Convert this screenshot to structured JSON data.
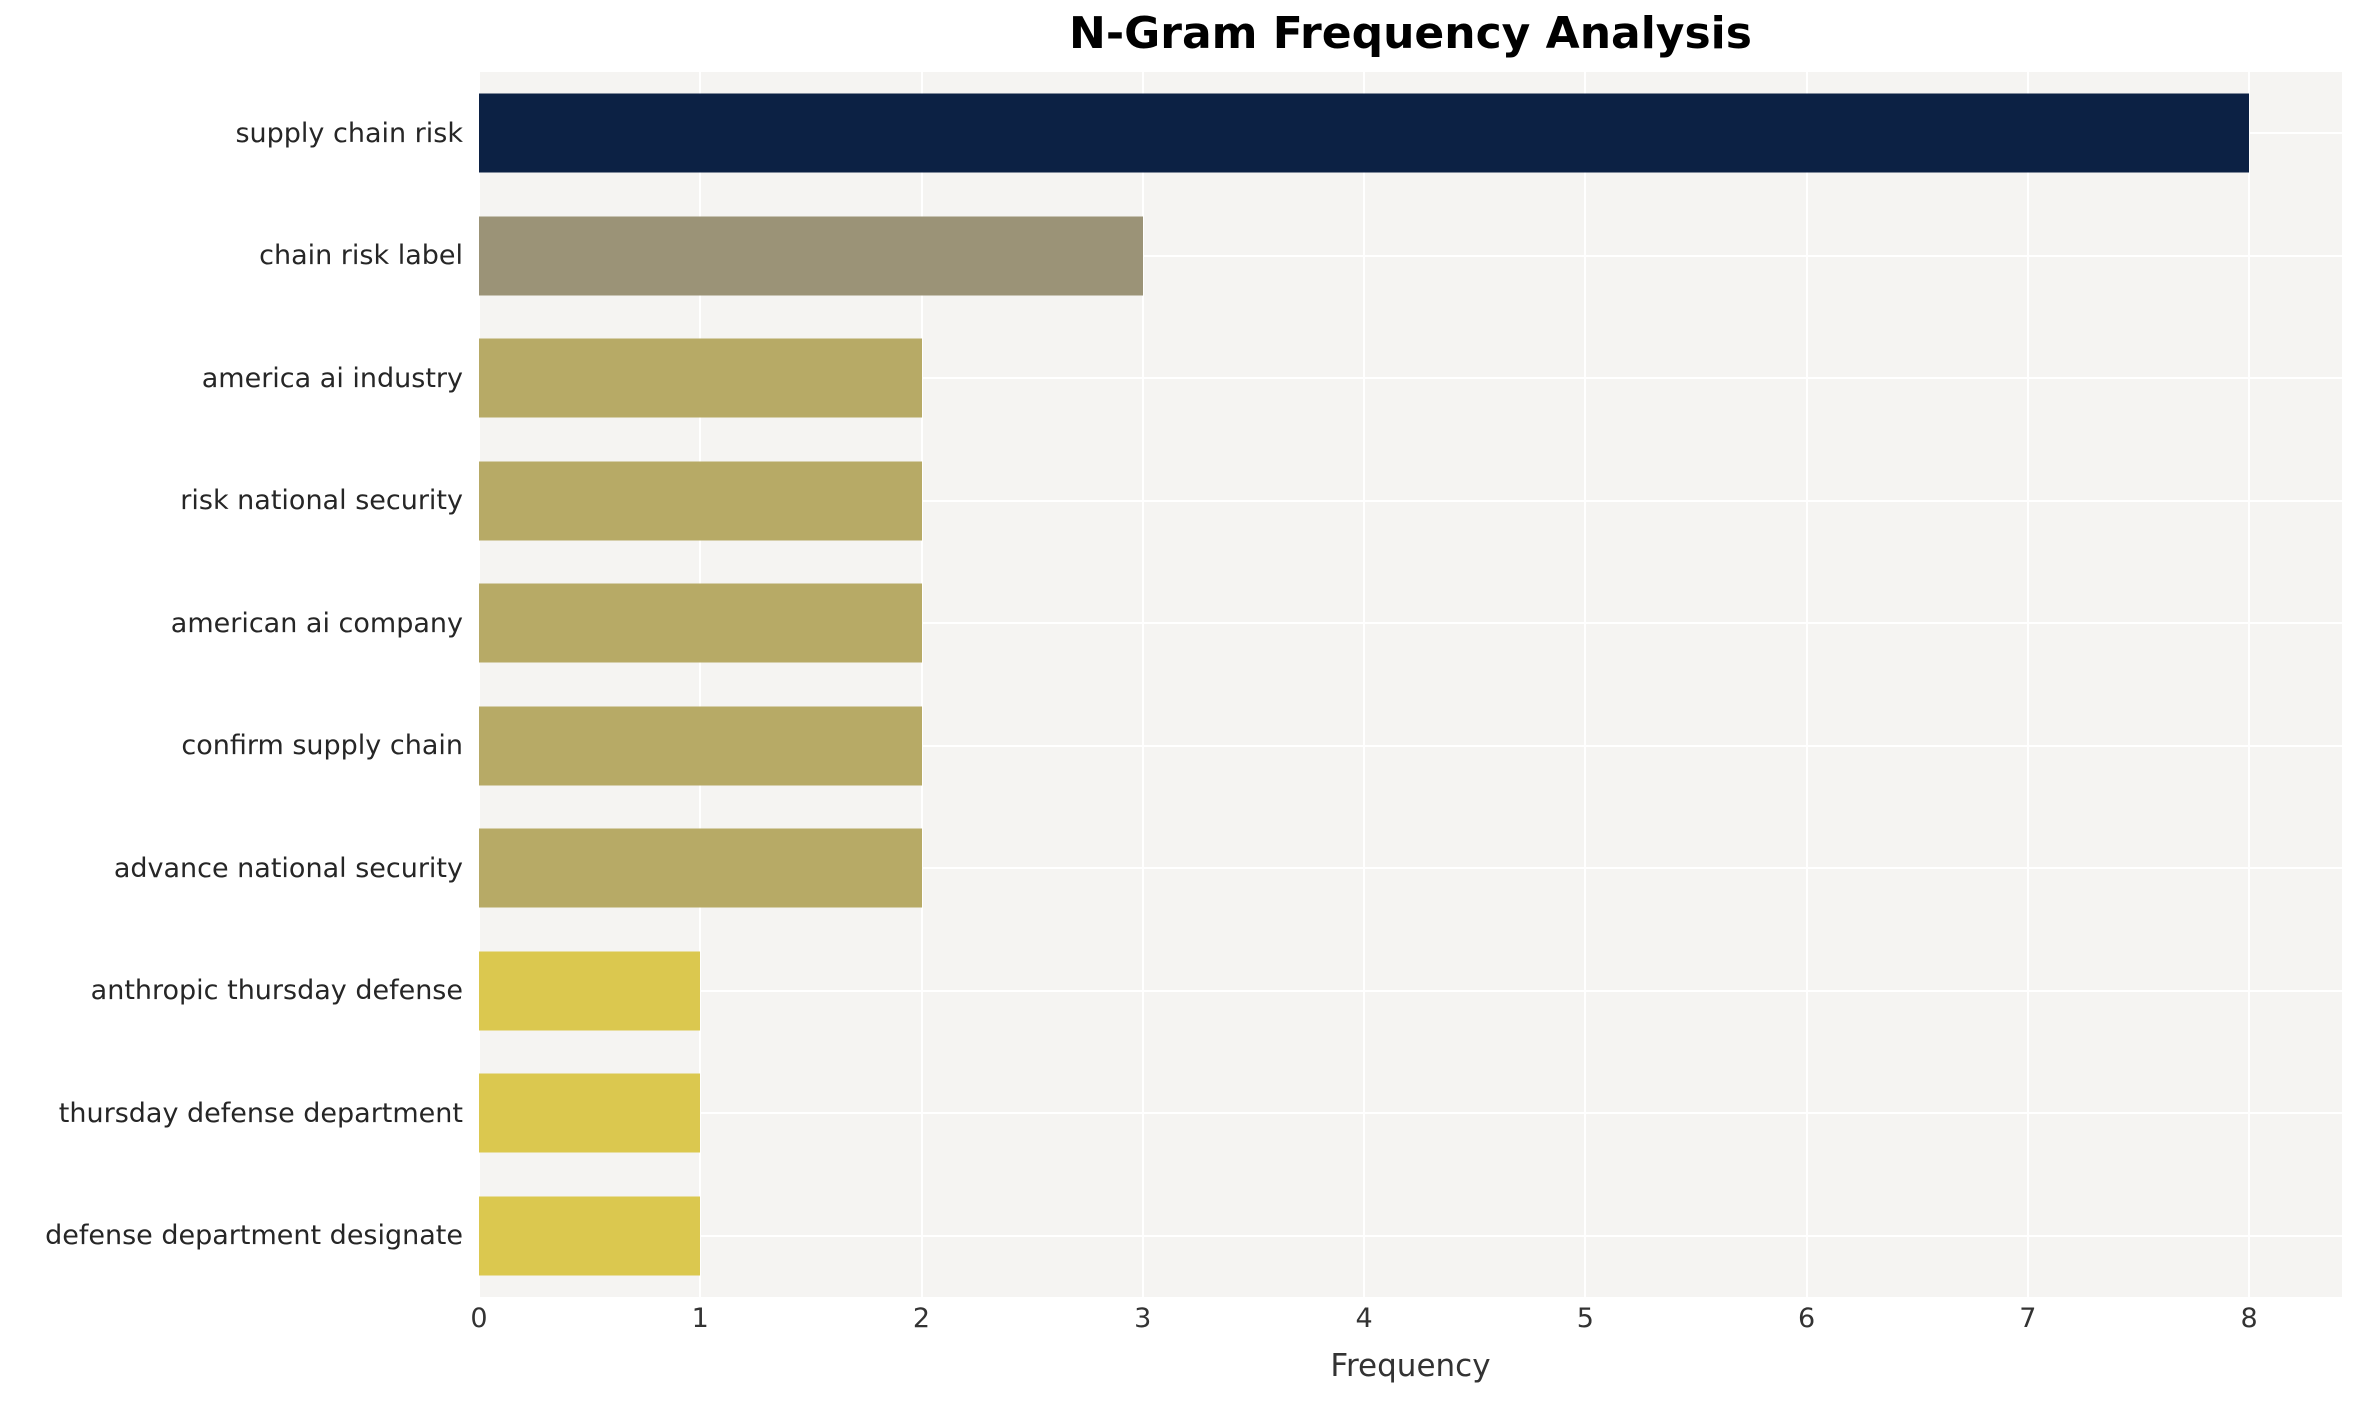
{
  "chart_data": {
    "type": "bar",
    "orientation": "horizontal",
    "title": "N-Gram Frequency Analysis",
    "xlabel": "Frequency",
    "ylabel": "",
    "xlim": [
      0,
      8.42
    ],
    "x_ticks": [
      0,
      1,
      2,
      3,
      4,
      5,
      6,
      7,
      8
    ],
    "grid": true,
    "legend": "none",
    "categories": [
      "supply chain risk",
      "chain risk label",
      "america ai industry",
      "risk national security",
      "american ai company",
      "confirm supply chain",
      "advance national security",
      "anthropic thursday defense",
      "thursday defense department",
      "defense department designate"
    ],
    "values": [
      8,
      3,
      2,
      2,
      2,
      2,
      2,
      1,
      1,
      1
    ],
    "bar_colors": [
      "#0c2144",
      "#9b9377",
      "#b7aa66",
      "#b7aa66",
      "#b7aa66",
      "#b7aa66",
      "#b7aa66",
      "#dbc84f",
      "#dbc84f",
      "#dbc84f"
    ],
    "colors": {
      "plot_background": "#f5f4f2",
      "page_background": "#ffffff",
      "gridline": "#ffffff",
      "label_text": "#262626",
      "tick_text": "#333333",
      "title_text": "#000000"
    }
  }
}
